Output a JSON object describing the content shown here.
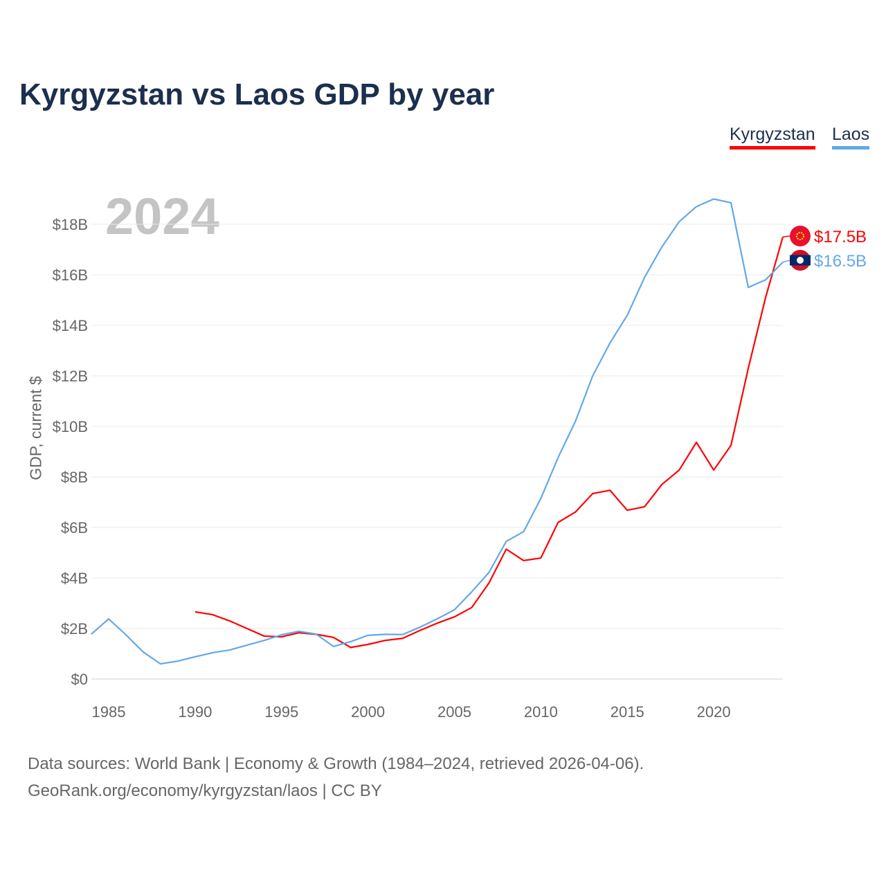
{
  "chart_data": {
    "type": "line",
    "title": "Kyrgyzstan vs Laos GDP by year",
    "ylabel": "GDP, current $",
    "xlabel": "",
    "current_year_label": "2024",
    "xlim": [
      1984,
      2024
    ],
    "ylim": [
      0,
      18
    ],
    "x_ticks": [
      1985,
      1990,
      1995,
      2000,
      2005,
      2010,
      2015,
      2020
    ],
    "y_ticks": [
      0,
      2,
      4,
      6,
      8,
      10,
      12,
      14,
      16,
      18
    ],
    "y_tick_labels": [
      "$0",
      "$2B",
      "$4B",
      "$6B",
      "$8B",
      "$10B",
      "$12B",
      "$14B",
      "$16B",
      "$18B"
    ],
    "grid": true,
    "legend_position": "top-right",
    "series": [
      {
        "name": "Kyrgyzstan",
        "color": "#ff0000",
        "end_label": "$17.5B",
        "x": [
          1990,
          1991,
          1992,
          1993,
          1994,
          1995,
          1996,
          1997,
          1998,
          1999,
          2000,
          2001,
          2002,
          2003,
          2004,
          2005,
          2006,
          2007,
          2008,
          2009,
          2010,
          2011,
          2012,
          2013,
          2014,
          2015,
          2016,
          2017,
          2018,
          2019,
          2020,
          2021,
          2022,
          2023,
          2024
        ],
        "values": [
          2.66,
          2.55,
          2.3,
          2.0,
          1.7,
          1.67,
          1.83,
          1.77,
          1.65,
          1.25,
          1.37,
          1.53,
          1.61,
          1.92,
          2.21,
          2.46,
          2.83,
          3.8,
          5.14,
          4.69,
          4.79,
          6.2,
          6.61,
          7.34,
          7.47,
          6.68,
          6.82,
          7.7,
          8.27,
          9.37,
          8.27,
          9.25,
          12.3,
          15.1,
          17.5
        ]
      },
      {
        "name": "Laos",
        "color": "#62a8ea",
        "end_label": "$16.5B",
        "x": [
          1984,
          1985,
          1986,
          1987,
          1988,
          1989,
          1990,
          1991,
          1992,
          1993,
          1994,
          1995,
          1996,
          1997,
          1998,
          1999,
          2000,
          2001,
          2002,
          2003,
          2004,
          2005,
          2006,
          2007,
          2008,
          2009,
          2010,
          2011,
          2012,
          2013,
          2014,
          2015,
          2016,
          2017,
          2018,
          2019,
          2020,
          2021,
          2022,
          2023,
          2024
        ],
        "values": [
          1.78,
          2.38,
          1.75,
          1.07,
          0.6,
          0.71,
          0.88,
          1.04,
          1.15,
          1.34,
          1.53,
          1.75,
          1.89,
          1.78,
          1.29,
          1.48,
          1.73,
          1.77,
          1.76,
          2.05,
          2.38,
          2.74,
          3.45,
          4.22,
          5.45,
          5.83,
          7.15,
          8.77,
          10.2,
          12.0,
          13.3,
          14.4,
          15.9,
          17.1,
          18.1,
          18.7,
          19.0,
          18.85,
          15.5,
          15.8,
          16.5
        ]
      }
    ]
  },
  "source": {
    "line1": "Data sources: World Bank | Economy & Growth (1984–2024, retrieved 2026-04-06).",
    "line2": "GeoRank.org/economy/kyrgyzstan/laos | CC BY"
  }
}
